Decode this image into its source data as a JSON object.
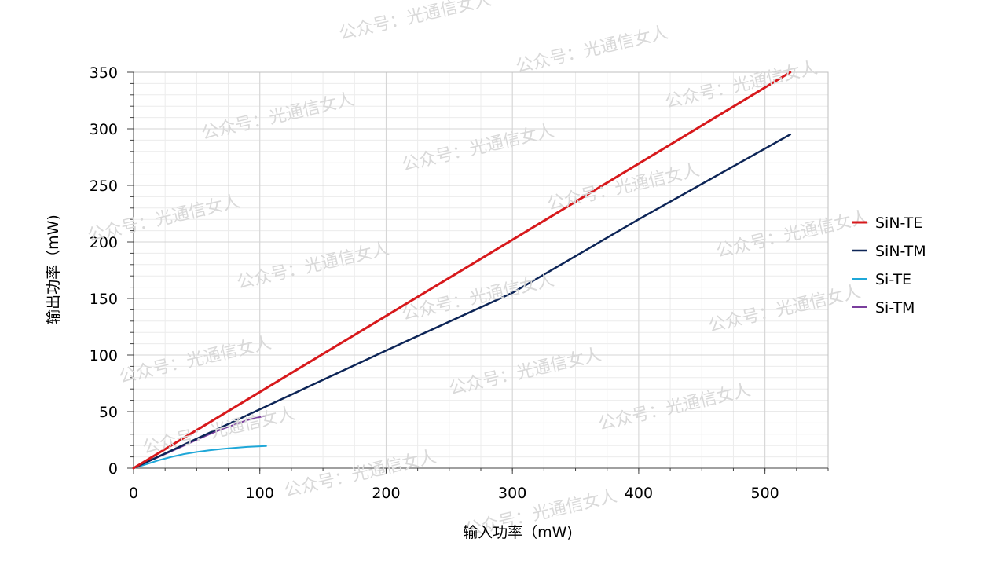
{
  "chart_data": {
    "type": "line",
    "title": "",
    "xlabel": "输入功率（mW)",
    "ylabel": "输出功率（mW)",
    "xlim": [
      0,
      550
    ],
    "ylim": [
      0,
      350
    ],
    "x_ticks": [
      0,
      100,
      200,
      300,
      400,
      500
    ],
    "y_ticks": [
      0,
      50,
      100,
      150,
      200,
      250,
      300,
      350
    ],
    "grid": true,
    "legend_position": "right",
    "series": [
      {
        "name": "SiN-TE",
        "color": "#d7191c",
        "width": 3,
        "points": [
          [
            0,
            0
          ],
          [
            520,
            350
          ]
        ]
      },
      {
        "name": "SiN-TM",
        "color": "#0d2557",
        "width": 2.5,
        "points": [
          [
            0,
            0
          ],
          [
            100,
            52
          ],
          [
            200,
            104
          ],
          [
            300,
            155
          ],
          [
            400,
            220
          ],
          [
            520,
            295
          ]
        ]
      },
      {
        "name": "Si-TE",
        "color": "#1ea7d8",
        "width": 2,
        "points": [
          [
            0,
            0
          ],
          [
            10,
            3.5
          ],
          [
            20,
            7
          ],
          [
            30,
            10
          ],
          [
            40,
            12.5
          ],
          [
            50,
            14.3
          ],
          [
            60,
            15.8
          ],
          [
            70,
            17
          ],
          [
            80,
            18
          ],
          [
            90,
            18.8
          ],
          [
            105,
            19.6
          ]
        ]
      },
      {
        "name": "Si-TM",
        "color": "#7a3e9d",
        "width": 2,
        "points": [
          [
            0,
            0
          ],
          [
            10,
            5
          ],
          [
            20,
            10
          ],
          [
            30,
            15
          ],
          [
            40,
            20
          ],
          [
            50,
            25
          ],
          [
            60,
            30
          ],
          [
            70,
            34.5
          ],
          [
            80,
            38.5
          ],
          [
            90,
            42.5
          ],
          [
            105,
            46.5
          ]
        ]
      }
    ]
  },
  "watermark": {
    "text": "公众号：光通信女人"
  }
}
